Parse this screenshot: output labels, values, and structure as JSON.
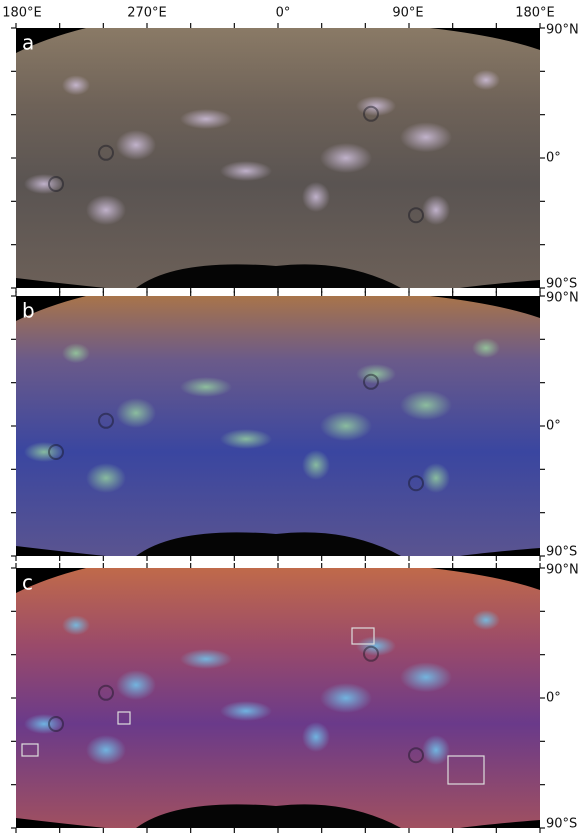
{
  "header": {
    "longitude_labels": [
      "180°E",
      "270°E",
      "0°",
      "90°E",
      "180°E"
    ]
  },
  "panels": [
    {
      "letter": "a",
      "latitude_labels": [
        "90°N",
        "0°",
        "90°S"
      ]
    },
    {
      "letter": "b",
      "latitude_labels": [
        "90°N",
        "0°",
        "90°S"
      ]
    },
    {
      "letter": "c",
      "latitude_labels": [
        "90°N",
        "0°",
        "90°S"
      ]
    }
  ]
}
